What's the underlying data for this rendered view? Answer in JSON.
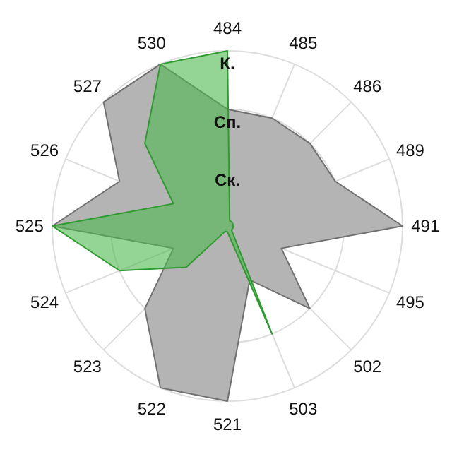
{
  "chart_data": {
    "type": "radar",
    "categories": [
      "484",
      "485",
      "486",
      "489",
      "491",
      "495",
      "502",
      "503",
      "521",
      "522",
      "523",
      "524",
      "525",
      "526",
      "527",
      "530"
    ],
    "ylim": [
      0,
      3
    ],
    "yticks": [
      {
        "value": 1,
        "label": "Ск."
      },
      {
        "value": 2,
        "label": "Сп."
      },
      {
        "value": 3,
        "label": "К."
      }
    ],
    "grid": true,
    "series": [
      {
        "color": "#b4b4b4",
        "values": [
          2,
          2,
          2,
          2,
          3,
          1,
          2,
          1,
          3,
          3,
          2,
          1,
          3,
          2,
          3,
          3
        ]
      },
      {
        "color": "#4cb84c",
        "values": [
          3,
          0.1,
          0.1,
          0.1,
          0.1,
          0.1,
          0.1,
          2,
          0.1,
          0.1,
          1,
          2,
          3,
          1,
          2,
          3
        ]
      }
    ]
  }
}
